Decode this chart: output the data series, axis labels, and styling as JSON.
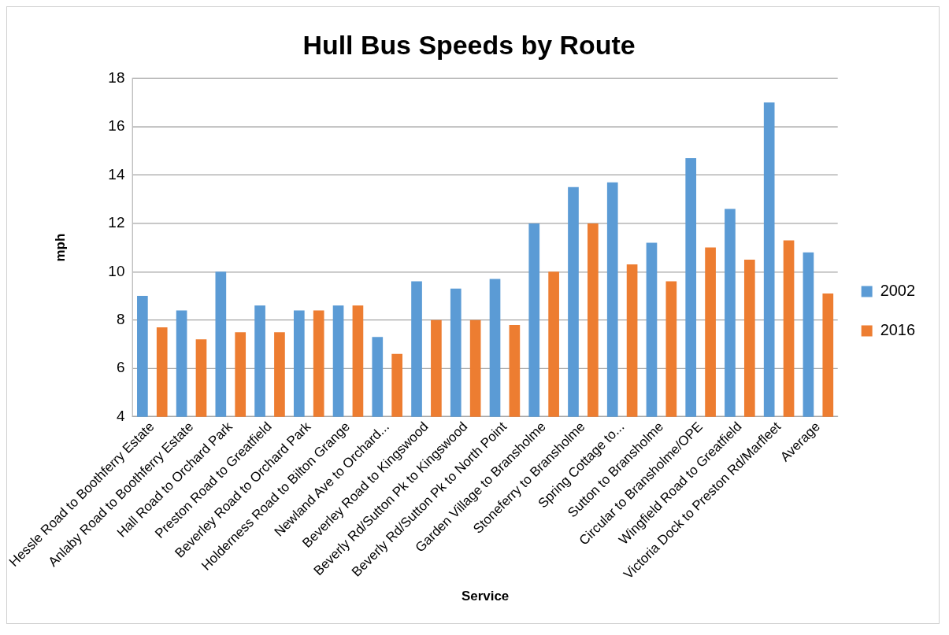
{
  "chart_data": {
    "type": "bar",
    "title": "Hull Bus Speeds by Route",
    "xlabel": "Service",
    "ylabel": "mph",
    "categories": [
      "Hessle Road to Boothferry Estate",
      "Anlaby Road to Boothferry Estate",
      "Hall Road to Orchard Park",
      "Preston Road to Greatfield",
      "Beverley Road to Orchard Park",
      "Holderness Road to Bilton Grange",
      "Newland Ave to Orchard...",
      "Beverley Road to Kingswood",
      "Beverly Rd/Sutton Pk to Kingswood",
      "Beverly Rd/Sutton Pk to North Point",
      "Garden Village to Bransholme",
      "Stoneferry to Bransholme",
      "Spring Cottage to...",
      "Sutton to Bransholme",
      "Circular to Bransholme/OPE",
      "Wingfield Road to Greatfield",
      "Victoria Dock to Preston Rd/Marfleet",
      "Average"
    ],
    "series": [
      {
        "name": "2002",
        "color": "#5b9bd5",
        "values": [
          9.0,
          8.4,
          10.0,
          8.6,
          8.4,
          8.6,
          7.3,
          9.6,
          9.3,
          9.7,
          12.0,
          13.5,
          13.7,
          11.2,
          14.7,
          12.6,
          17.0,
          10.8
        ]
      },
      {
        "name": "2016",
        "color": "#ed7d31",
        "values": [
          7.7,
          7.2,
          7.5,
          7.5,
          8.4,
          8.6,
          6.6,
          8.0,
          8.0,
          7.8,
          10.0,
          12.0,
          10.3,
          9.6,
          11.0,
          10.5,
          11.3,
          9.1
        ]
      }
    ],
    "ylim": [
      4,
      18
    ],
    "yticks": [
      4,
      6,
      8,
      10,
      12,
      14,
      16,
      18
    ],
    "grid": "y",
    "legend": "right"
  }
}
